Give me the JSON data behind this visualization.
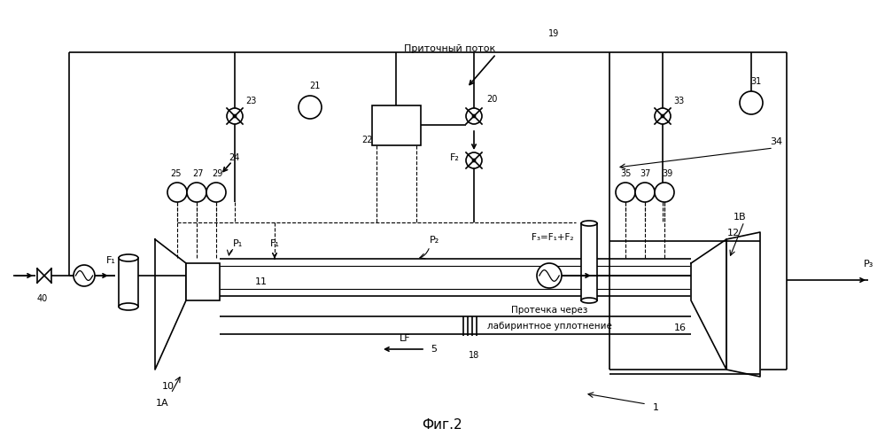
{
  "title": "Фиг.2",
  "bg_color": "#ffffff",
  "label_pritochny": "Приточный поток",
  "label_protechka1": "Протечка через",
  "label_protechka2": "лабиринтное уплотнение",
  "n1": "1",
  "n1A": "1A",
  "n1B": "1В",
  "n5": "5",
  "n10": "10",
  "n11": "11",
  "n12": "12",
  "n16": "16",
  "n18": "18",
  "n19": "19",
  "n20": "20",
  "n21": "21",
  "n22": "22",
  "n23": "23",
  "n24": "24",
  "n25": "25",
  "n27": "27",
  "n29": "29",
  "n31": "31",
  "n33": "33",
  "n34": "34",
  "n35": "35",
  "n37": "37",
  "n39": "39",
  "n40": "40",
  "F1": "F₁",
  "F2": "F₂",
  "F3": "F₃=F₁+F₂",
  "P1": "P₁",
  "P2": "P₂",
  "P3": "P₃",
  "LF": "LF"
}
